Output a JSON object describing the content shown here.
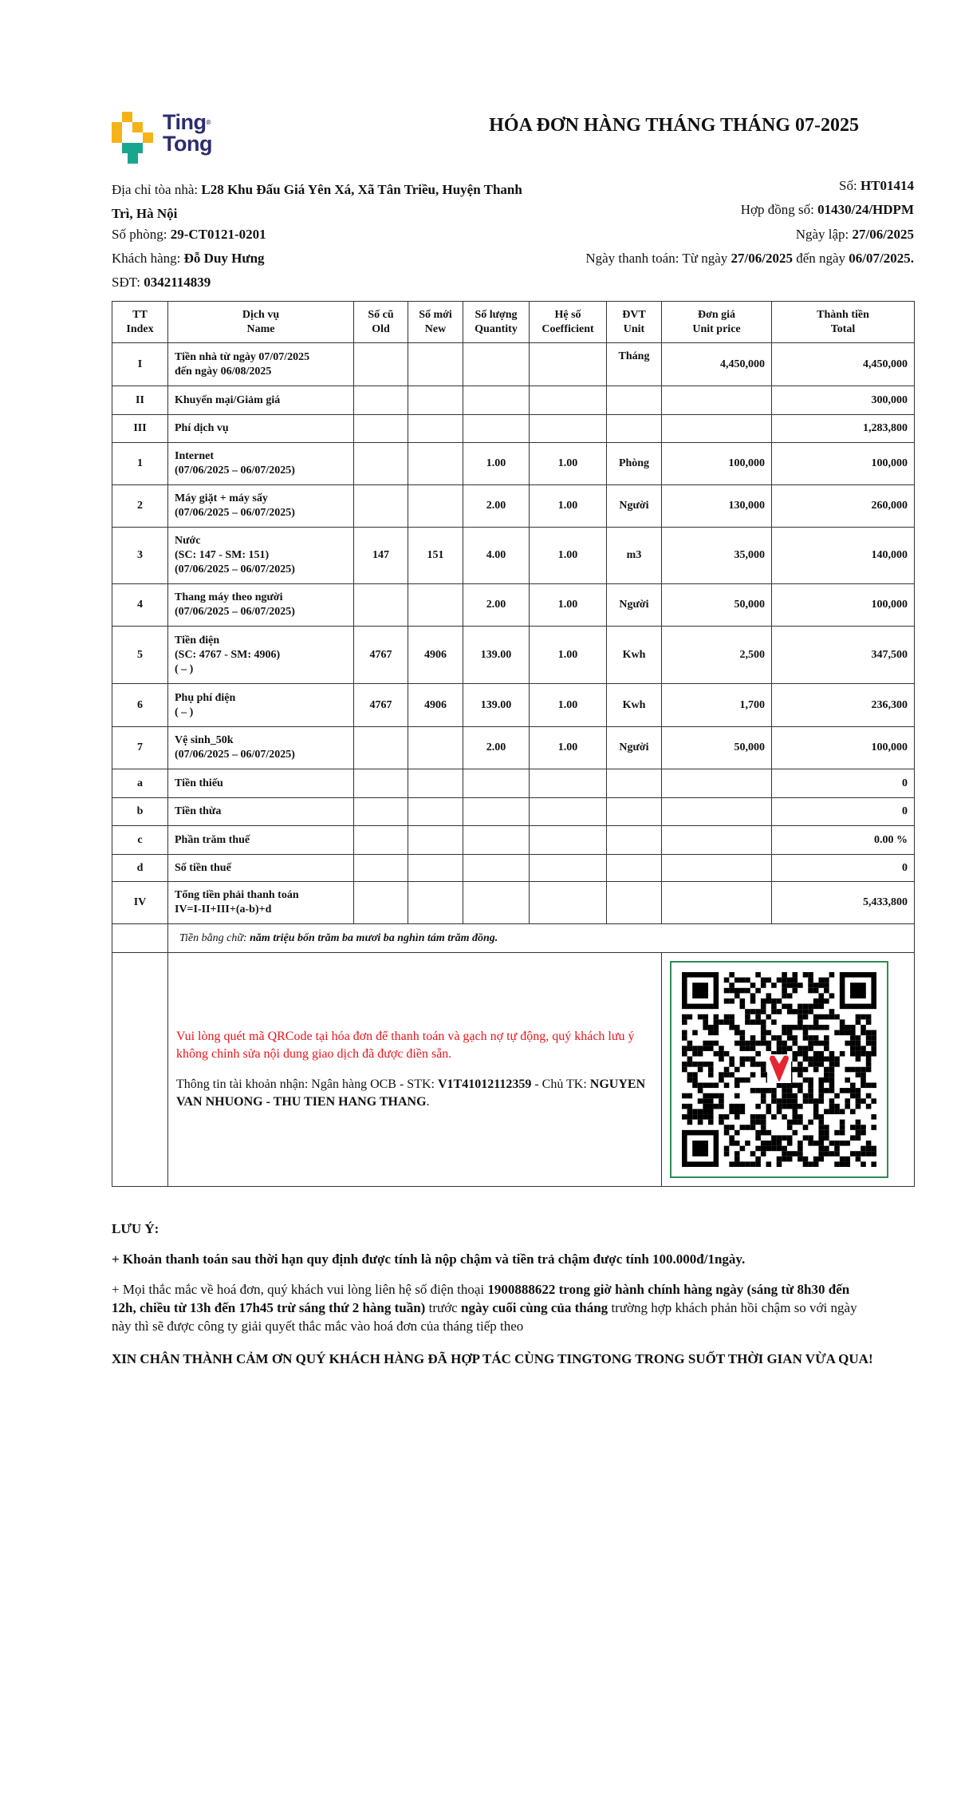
{
  "logo": {
    "line1": "Ting",
    "line2": "Tong",
    "colors": {
      "yellow": "#f6b318",
      "teal": "#1aa58e",
      "navy": "#2b2d6e"
    }
  },
  "title": "HÓA ĐƠN HÀNG THÁNG THÁNG 07-2025",
  "info": {
    "address_label": "Địa chỉ tòa nhà: ",
    "address_value": "L28 Khu Đấu Giá Yên Xá, Xã Tân Triều, Huyện Thanh Trì, Hà Nội",
    "room_label": "Số phòng: ",
    "room_value": "29-CT0121-0201",
    "customer_label": "Khách hàng: ",
    "customer_value": "Đỗ Duy Hưng",
    "phone_label": "SĐT: ",
    "phone_value": "0342114839",
    "number_label": "Số: ",
    "number_value": "HT01414",
    "contract_label": "Hợp đồng số: ",
    "contract_value": "01430/24/HDPM",
    "date_label": "Ngày lập: ",
    "date_value": "27/06/2025",
    "payment_label": "Ngày thanh toán: Từ ngày ",
    "payment_from": "27/06/2025",
    "payment_mid": " đến ngày ",
    "payment_to": "06/07/2025."
  },
  "table": {
    "headers": [
      "TT\nIndex",
      "Dịch vụ\nName",
      "Số cũ\nOld",
      "Số mới\nNew",
      "Số lượng\nQuantity",
      "Hệ số\nCoefficient",
      "ĐVT\nUnit",
      "Đơn giá\nUnit price",
      "Thành tiền\nTotal"
    ],
    "rows": [
      {
        "index": "I",
        "name": "Tiền nhà từ ngày 07/07/2025\nđến ngày 06/08/2025",
        "old": "",
        "new": "",
        "qty": "",
        "coef": "",
        "unit": "Tháng",
        "price": "4,450,000",
        "total": "4,450,000"
      },
      {
        "index": "II",
        "name": "Khuyến mại/Giảm giá",
        "old": "",
        "new": "",
        "qty": "",
        "coef": "",
        "unit": "",
        "price": "",
        "total": "300,000"
      },
      {
        "index": "III",
        "name": "Phí dịch vụ",
        "old": "",
        "new": "",
        "qty": "",
        "coef": "",
        "unit": "",
        "price": "",
        "total": "1,283,800"
      },
      {
        "index": "1",
        "name": "Internet\n(07/06/2025 – 06/07/2025)",
        "old": "",
        "new": "",
        "qty": "1.00",
        "coef": "1.00",
        "unit": "Phòng",
        "price": "100,000",
        "total": "100,000"
      },
      {
        "index": "2",
        "name": "Máy giặt + máy sấy\n(07/06/2025 – 06/07/2025)",
        "old": "",
        "new": "",
        "qty": "2.00",
        "coef": "1.00",
        "unit": "Người",
        "price": "130,000",
        "total": "260,000"
      },
      {
        "index": "3",
        "name": "Nước\n(SC: 147 - SM: 151)\n(07/06/2025 – 06/07/2025)",
        "old": "147",
        "new": "151",
        "qty": "4.00",
        "coef": "1.00",
        "unit": "m3",
        "price": "35,000",
        "total": "140,000"
      },
      {
        "index": "4",
        "name": "Thang máy theo người\n(07/06/2025 – 06/07/2025)",
        "old": "",
        "new": "",
        "qty": "2.00",
        "coef": "1.00",
        "unit": "Người",
        "price": "50,000",
        "total": "100,000"
      },
      {
        "index": "5",
        "name": "Tiền điện\n(SC: 4767 - SM: 4906)\n( – )",
        "old": "4767",
        "new": "4906",
        "qty": "139.00",
        "coef": "1.00",
        "unit": "Kwh",
        "price": "2,500",
        "total": "347,500"
      },
      {
        "index": "6",
        "name": "Phụ phí điện\n( – )",
        "old": "4767",
        "new": "4906",
        "qty": "139.00",
        "coef": "1.00",
        "unit": "Kwh",
        "price": "1,700",
        "total": "236,300"
      },
      {
        "index": "7",
        "name": "Vệ sinh_50k\n(07/06/2025 – 06/07/2025)",
        "old": "",
        "new": "",
        "qty": "2.00",
        "coef": "1.00",
        "unit": "Người",
        "price": "50,000",
        "total": "100,000"
      },
      {
        "index": "a",
        "name": "Tiền thiếu",
        "old": "",
        "new": "",
        "qty": "",
        "coef": "",
        "unit": "",
        "price": "",
        "total": "0"
      },
      {
        "index": "b",
        "name": "Tiền thừa",
        "old": "",
        "new": "",
        "qty": "",
        "coef": "",
        "unit": "",
        "price": "",
        "total": "0"
      },
      {
        "index": "c",
        "name": "Phần trăm thuế",
        "old": "",
        "new": "",
        "qty": "",
        "coef": "",
        "unit": "",
        "price": "",
        "total": "0.00 %"
      },
      {
        "index": "d",
        "name": "Số tiền thuế",
        "old": "",
        "new": "",
        "qty": "",
        "coef": "",
        "unit": "",
        "price": "",
        "total": "0"
      },
      {
        "index": "IV",
        "name": "Tổng tiền phải thanh toán\nIV=I-II+III+(a-b)+d",
        "old": "",
        "new": "",
        "qty": "",
        "coef": "",
        "unit": "",
        "price": "",
        "total": "5,433,800"
      }
    ],
    "words_label": "Tiền bằng chữ: ",
    "words_value": "năm triệu bốn trăm ba mươi ba nghìn tám trăm đồng."
  },
  "payment": {
    "qr_notice": "Vui lòng quét mã QRCode tại hóa đơn để thanh toán và gạch nợ tự động, quý khách lưu ý không chỉnh sửa nội dung giao dịch đã được điền sẵn.",
    "account_prefix": "Thông tin tài khoản nhận: Ngân hàng OCB - STK: ",
    "account_number": "V1T41012112359",
    "account_mid": " - Chủ TK: ",
    "account_holder": "NGUYEN VAN NHUONG - THU TIEN HANG THANG",
    "account_end": ".",
    "notice_color": "#e8141b",
    "qr_border_color": "#2e8b57"
  },
  "notes": {
    "heading": "LƯU Ý:",
    "note1": "+ Khoản thanh toán sau thời hạn quy định được tính là nộp chậm và tiền trả chậm được tính 100.000đ/1ngày.",
    "note2_a": "+ Mọi thắc mắc về hoá đơn, quý khách vui lòng liên hệ số điện thoại ",
    "note2_b": "1900888622 trong giờ hành chính hàng ngày (sáng từ 8h30 đến 12h, chiều từ 13h đến 17h45 trừ sáng thứ 2 hàng tuần)",
    "note2_c": " trước ",
    "note2_d": "ngày cuối cùng của tháng",
    "note2_e": " trường hợp khách phản hồi chậm so với ngày này thì sẽ được công ty giải quyết thắc mắc vào hoá đơn của tháng tiếp theo",
    "thanks": "XIN CHÂN THÀNH CẢM ƠN QUÝ KHÁCH HÀNG ĐÃ HỢP TÁC CÙNG TINGTONG TRONG SUỐT THỜI GIAN VỪA QUA!"
  }
}
